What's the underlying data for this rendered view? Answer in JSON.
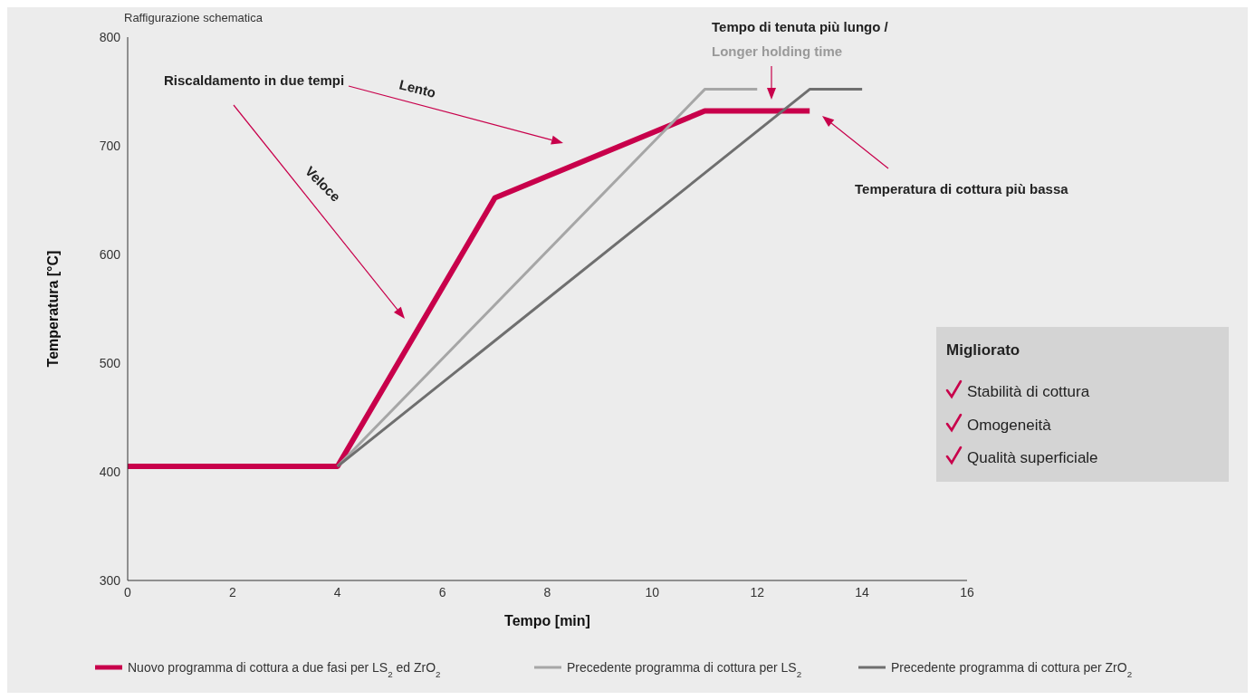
{
  "chart_data": {
    "type": "line",
    "xlabel": "Tempo [min]",
    "ylabel": "Temperatura [°C]",
    "xlim": [
      0,
      16
    ],
    "xticks": [
      0,
      2,
      4,
      6,
      8,
      10,
      12,
      14,
      16
    ],
    "ylim": [
      300,
      800
    ],
    "yticks": [
      300,
      400,
      500,
      600,
      700,
      800
    ],
    "legend": "bottom",
    "series": [
      {
        "name": "Nuovo programma di cottura a due fasi per LS$_{2}$ ed ZrO$_{2}$",
        "color": "#c8004b",
        "x": [
          0,
          4,
          7,
          11,
          13
        ],
        "values": [
          405,
          405,
          652,
          732,
          732
        ]
      },
      {
        "name": "Precedente programma di cottura per LS$_{2}$",
        "color": "#a6a6a6",
        "x": [
          4,
          11,
          12
        ],
        "values": [
          405,
          752,
          752
        ]
      },
      {
        "name": "Precedente programma di cottura per ZrO$_{2}$",
        "color": "#6f6f6f",
        "x": [
          4,
          13,
          14
        ],
        "values": [
          405,
          752,
          752
        ]
      }
    ],
    "annotations": [
      "Raffigurazione schematica",
      "Riscaldamento in due tempi",
      "Lento",
      "Veloce",
      "Tempo di tenuta più lungo /",
      "Longer holding time",
      "Temperatura di cottura più bassa",
      "Migliorato",
      "Stabilità di cottura",
      "Omogeneità",
      "Qualità superficiale"
    ]
  }
}
